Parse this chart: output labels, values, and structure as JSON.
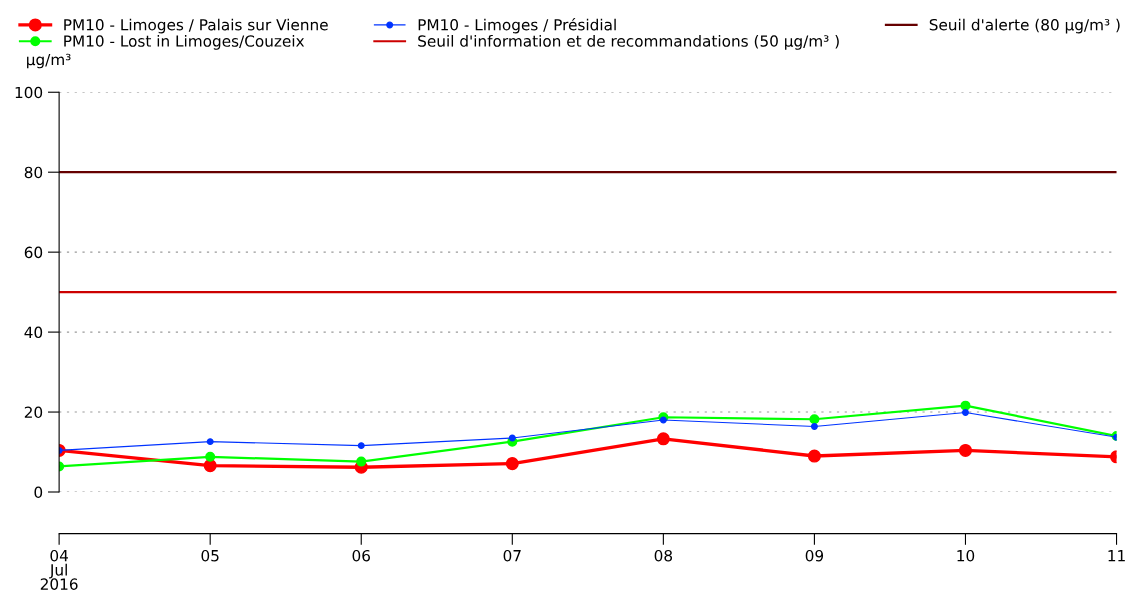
{
  "chart_data": {
    "type": "line",
    "ylabel": "μg/m³",
    "x": [
      "2016-07-04",
      "2016-07-05",
      "2016-07-06",
      "2016-07-07",
      "2016-07-08",
      "2016-07-09",
      "2016-07-10",
      "2016-07-11"
    ],
    "series": [
      {
        "name": "PM10 - Limoges / Palais sur Vienne",
        "color": "#ff0000",
        "values": [
          10.4,
          6.6,
          6.2,
          7.1,
          13.3,
          9.0,
          10.4,
          8.8
        ]
      },
      {
        "name": "PM10 - Lost in Limoges/Couzeix",
        "color": "#00ff00",
        "values": [
          6.4,
          8.8,
          7.6,
          12.6,
          18.7,
          18.2,
          21.6,
          14.0
        ]
      },
      {
        "name": "PM10 - Limoges / Présidial",
        "color": "#0033ff",
        "values": [
          10.4,
          12.6,
          11.6,
          13.5,
          18.0,
          16.4,
          19.9,
          13.7
        ]
      }
    ],
    "ref_lines": [
      {
        "axis": "y",
        "value": 50,
        "label": "Seuil d'information et de recommandations (50 μg/m³ )",
        "color": "#cc0000"
      },
      {
        "axis": "y",
        "value": 80,
        "label": "Seuil d'alerte (80 μg/m³ )",
        "color": "#660000"
      }
    ],
    "xlim": [
      "2016-07-04",
      "2016-07-11"
    ],
    "xticks": [
      {
        "value": "2016-07-04",
        "label": "04\nJul\n2016"
      },
      {
        "value": "2016-07-05",
        "label": "05"
      },
      {
        "value": "2016-07-06",
        "label": "06"
      },
      {
        "value": "2016-07-07",
        "label": "07"
      },
      {
        "value": "2016-07-08",
        "label": "08"
      },
      {
        "value": "2016-07-09",
        "label": "09"
      },
      {
        "value": "2016-07-10",
        "label": "10"
      },
      {
        "value": "2016-07-11",
        "label": "11"
      }
    ],
    "ylim": [
      0,
      100
    ],
    "yticks": [
      0,
      20,
      40,
      60,
      80,
      100
    ],
    "grid": "y",
    "legend": "top",
    "marker": "circle",
    "line_style": "solid"
  }
}
